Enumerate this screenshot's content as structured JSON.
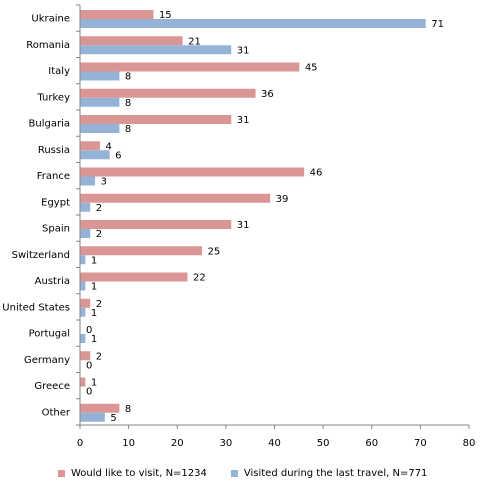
{
  "chart_data": {
    "type": "bar",
    "orientation": "horizontal",
    "categories": [
      "Ukraine",
      "Romania",
      "Italy",
      "Turkey",
      "Bulgaria",
      "Russia",
      "France",
      "Egypt",
      "Spain",
      "Switzerland",
      "Austria",
      "United States",
      "Portugal",
      "Germany",
      "Greece",
      "Other"
    ],
    "series": [
      {
        "name": "Would like to visit, N=1234",
        "color": "#d99694",
        "values": [
          15,
          21,
          45,
          36,
          31,
          4,
          46,
          39,
          31,
          25,
          22,
          2,
          0,
          2,
          1,
          8
        ]
      },
      {
        "name": "Visited during the last travel, N=771",
        "color": "#95b3d7",
        "values": [
          71,
          31,
          8,
          8,
          8,
          6,
          3,
          2,
          2,
          1,
          1,
          1,
          1,
          0,
          0,
          5
        ]
      }
    ],
    "xlim": [
      0,
      80
    ],
    "xticks": [
      0,
      10,
      20,
      30,
      40,
      50,
      60,
      70,
      80
    ],
    "grid": false,
    "legend_position": "bottom"
  }
}
